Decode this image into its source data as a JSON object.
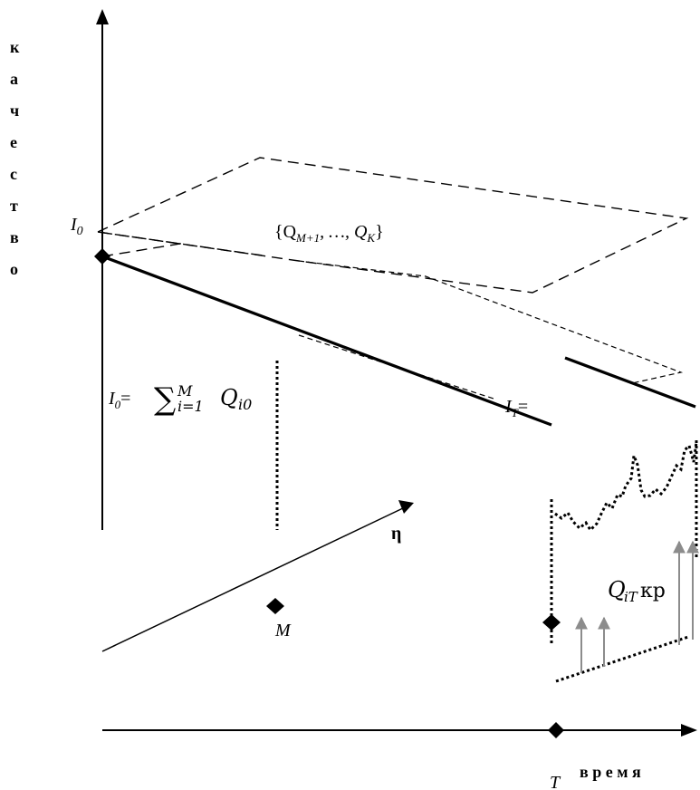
{
  "labels": {
    "y_axis_letters": [
      "к",
      "а",
      "ч",
      "е",
      "с",
      "т",
      "в",
      "о"
    ],
    "x_axis": "в р е м я",
    "eta": "η",
    "i0": "I",
    "i0_sub": "0",
    "t_label": "T",
    "m_label": "M",
    "it_label": "I",
    "it_sub": "T",
    "it_eq": "=",
    "set_label": "{Q",
    "set_sub1": "M+1",
    "set_mid": ", …, Q",
    "set_sub2": "K",
    "set_close": "}",
    "formula": {
      "lhs_I": "I",
      "lhs_sub": "0",
      "lhs_eq": "=",
      "sum": "∑",
      "sum_upper": "M",
      "sum_lower": "i=1",
      "term": "Q",
      "term_sub": "i0"
    },
    "qit": {
      "q": "Q",
      "sub": "iT",
      "suffix": "кр"
    }
  },
  "colors": {
    "line": "#000000",
    "arrow_gray": "#8c8c8c"
  }
}
